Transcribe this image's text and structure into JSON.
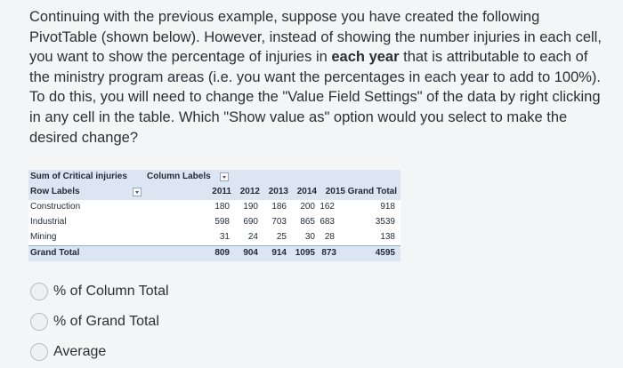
{
  "question": {
    "part1": "Continuing with the previous example, suppose you have created the following PivotTable (shown below). However, instead of showing the number injuries in each cell, you want to show the percentage of injuries in ",
    "bold": "each year",
    "part2": " that is attributable to each of the ministry program areas (i.e. you want the percentages in each year to add to 100%). To do this, you will need to change the \"Value Field Settings\" of the data by right clicking in any cell in the table. Which \"Show value as\" option would you select to make the desired change?"
  },
  "pivot": {
    "title": "Sum of Critical injuries",
    "column_labels": "Column Labels",
    "row_labels": "Row Labels",
    "years": [
      "2011",
      "2012",
      "2013",
      "2014",
      "2015"
    ],
    "grand_total_header": "Grand Total",
    "rows": [
      {
        "label": "Construction",
        "values": [
          "180",
          "190",
          "186",
          "200",
          "162"
        ],
        "total": "918"
      },
      {
        "label": "Industrial",
        "values": [
          "598",
          "690",
          "703",
          "865",
          "683"
        ],
        "total": "3539"
      },
      {
        "label": "Mining",
        "values": [
          "31",
          "24",
          "25",
          "30",
          "28"
        ],
        "total": "138"
      }
    ],
    "grand_total": {
      "label": "Grand Total",
      "values": [
        "809",
        "904",
        "914",
        "1095",
        "873"
      ],
      "total": "4595"
    }
  },
  "options": [
    {
      "label": "% of Column Total",
      "selected": false
    },
    {
      "label": "% of Grand Total",
      "selected": false
    },
    {
      "label": "Average",
      "selected": false
    }
  ]
}
